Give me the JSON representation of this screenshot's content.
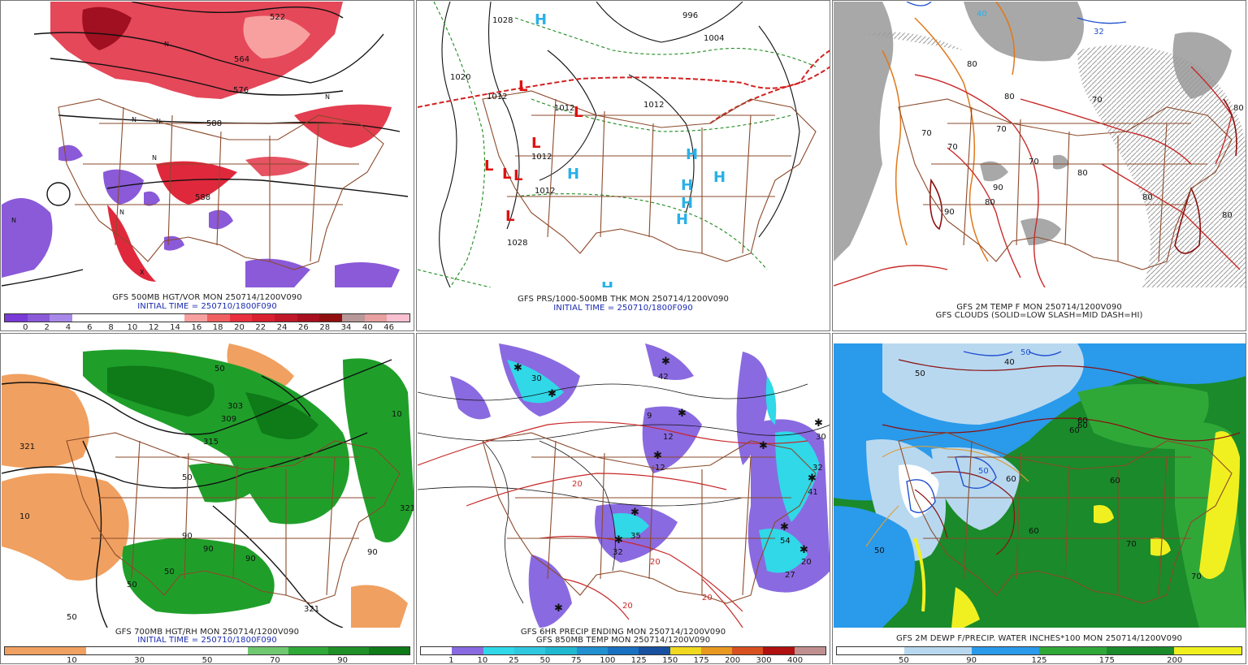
{
  "colors": {
    "border": "#8b4a2b",
    "contour": "#111111",
    "vort_pos": "#e0283c",
    "vort_neg": "#8a5ad8",
    "high": "#2ab0e8",
    "low": "#e01010",
    "front": "#d42020",
    "thickness": "#1e8a1e",
    "cloud": "#a8a8a8",
    "temp": "#c82828",
    "rh_dry": "#f0a060",
    "rh_moist": "#1f9f2a",
    "precip": "#8a6ae0",
    "precip_heavy": "#30d8e8",
    "pwat": "#2a9aea",
    "dewp": "#1a8a2a"
  },
  "panels": [
    {
      "id": "p1",
      "title": "GFS 500MB HGT/VOR MON 250714/1200V090",
      "subtitle": "INITIAL TIME = 250710/1800F090",
      "colorbar_labels": [
        "0",
        "2",
        "4",
        "6",
        "8",
        "10",
        "12",
        "14",
        "16",
        "18",
        "20",
        "22",
        "24",
        "26",
        "28",
        "34",
        "40",
        "46"
      ],
      "colorbar_colors": [
        "#7a3ad8",
        "#8a5ad8",
        "#a888e8",
        "#ffffff",
        "#ffffff",
        "#ffffff",
        "#ffffff",
        "#ffffff",
        "#f8a0a0",
        "#f06060",
        "#e83040",
        "#d82030",
        "#c01828",
        "#a81020",
        "#901010",
        "#b89898",
        "#e8a0a0",
        "#f8c0d0"
      ],
      "contour_labels": [
        "564",
        "576",
        "588",
        "588",
        "522"
      ],
      "symbols": [
        "N",
        "N",
        "N",
        "N",
        "N",
        "N",
        "N",
        "X"
      ]
    },
    {
      "id": "p2",
      "title": "GFS PRS/1000-500MB THK MON 250714/1200V090",
      "subtitle": "INITIAL TIME = 250710/1800F090",
      "contour_labels": [
        "1028",
        "1020",
        "1012",
        "1012",
        "1012",
        "1012",
        "1004",
        "996",
        "1012",
        "1028"
      ],
      "highs": [
        "H",
        "H",
        "H",
        "H",
        "H",
        "H",
        "H",
        "H"
      ],
      "lows": [
        "L",
        "L",
        "L",
        "L",
        "L",
        "L",
        "L"
      ]
    },
    {
      "id": "p3",
      "title": "GFS 2M TEMP F MON 250714/1200V090",
      "subtitle": "GFS CLOUDS (SOLID=LOW SLASH=MID DASH=HI)",
      "contour_labels": [
        "80",
        "70",
        "70",
        "70",
        "70",
        "70",
        "80",
        "80",
        "80",
        "80",
        "80",
        "90",
        "90",
        "40",
        "32",
        "80"
      ]
    },
    {
      "id": "p4",
      "title": "GFS 700MB HGT/RH MON 250714/1200V090",
      "subtitle": "INITIAL TIME = 250710/1800F090",
      "colorbar_labels": [
        "10",
        "30",
        "50",
        "70",
        "90"
      ],
      "colorbar_colors": [
        "#f0a060",
        "#f0a060",
        "#ffffff",
        "#ffffff",
        "#ffffff",
        "#ffffff",
        "#70c870",
        "#30a838",
        "#1f8f28",
        "#0f7a18"
      ],
      "contour_labels": [
        "321",
        "10",
        "50",
        "50",
        "50",
        "315",
        "303",
        "309",
        "50",
        "90",
        "90",
        "90",
        "10",
        "321",
        "50",
        "90",
        "321"
      ]
    },
    {
      "id": "p5",
      "title": "GFS 6HR PRECIP ENDING MON 250714/1200V090",
      "subtitle": "GFS 850MB TEMP MON 250714/1200V090",
      "colorbar_labels": [
        "1",
        "10",
        "25",
        "50",
        "75",
        "100",
        "125",
        "150",
        "175",
        "200",
        "300",
        "400"
      ],
      "colorbar_colors": [
        "#ffffff",
        "#8a6ae0",
        "#30d8e8",
        "#30c8e0",
        "#20b8d0",
        "#2090d0",
        "#1870c0",
        "#1850a0",
        "#f0d820",
        "#e89820",
        "#d85020",
        "#b01010",
        "#c09090"
      ],
      "contour_labels": [
        "30",
        "12",
        "12",
        "42",
        "9",
        "32",
        "30",
        "41",
        "35",
        "32",
        "54",
        "20",
        "27",
        "20",
        "20",
        "20",
        "20"
      ]
    },
    {
      "id": "p6",
      "title": "GFS 2M DEWP F/PRECIP. WATER INCHES*100 MON 250714/1200V090",
      "colorbar_labels": [
        "50",
        "90",
        "125",
        "175",
        "200"
      ],
      "colorbar_colors": [
        "#ffffff",
        "#ffffff",
        "#b8d8f0",
        "#b8d8f0",
        "#2a9aea",
        "#2a9aea",
        "#30a838",
        "#30a838",
        "#1a8a2a",
        "#1a8a2a",
        "#f0f020",
        "#f0f020"
      ],
      "contour_labels": [
        "50",
        "50",
        "50",
        "40",
        "60",
        "60",
        "60",
        "60",
        "60",
        "70",
        "70",
        "60",
        "50"
      ]
    }
  ]
}
